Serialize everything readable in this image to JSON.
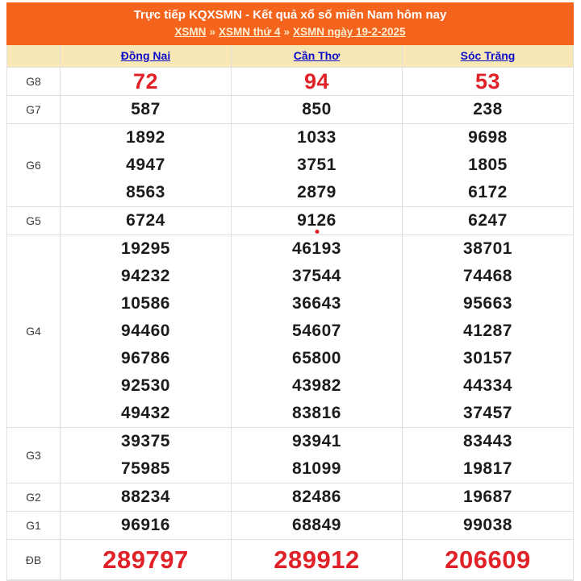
{
  "banner": {
    "title": "Trực tiếp KQXSMN - Kết quả xổ số miền Nam hôm nay",
    "breadcrumb": [
      {
        "label": "XSMN"
      },
      {
        "label": "XSMN thứ 4"
      },
      {
        "label": "XSMN ngày 19-2-2025"
      }
    ],
    "separator": "»"
  },
  "table": {
    "columns": [
      "Đồng Nai",
      "Cần Thơ",
      "Sóc Trăng"
    ],
    "rows": [
      {
        "label": "G8",
        "style": "red-large",
        "values": [
          [
            "72"
          ],
          [
            "94"
          ],
          [
            "53"
          ]
        ]
      },
      {
        "label": "G7",
        "style": "normal",
        "values": [
          [
            "587"
          ],
          [
            "850"
          ],
          [
            "238"
          ]
        ]
      },
      {
        "label": "G6",
        "style": "normal",
        "values": [
          [
            "1892",
            "4947",
            "8563"
          ],
          [
            "1033",
            "3751",
            "2879"
          ],
          [
            "9698",
            "1805",
            "6172"
          ]
        ]
      },
      {
        "label": "G5",
        "style": "normal",
        "live_dot_col": 1,
        "values": [
          [
            "6724"
          ],
          [
            "9126"
          ],
          [
            "6247"
          ]
        ]
      },
      {
        "label": "G4",
        "style": "normal",
        "values": [
          [
            "19295",
            "94232",
            "10586",
            "94460",
            "96786",
            "92530",
            "49432"
          ],
          [
            "46193",
            "37544",
            "36643",
            "54607",
            "65800",
            "43982",
            "83816"
          ],
          [
            "38701",
            "74468",
            "95663",
            "41287",
            "30157",
            "44334",
            "37457"
          ]
        ]
      },
      {
        "label": "G3",
        "style": "normal",
        "values": [
          [
            "39375",
            "75985"
          ],
          [
            "93941",
            "81099"
          ],
          [
            "83443",
            "19817"
          ]
        ]
      },
      {
        "label": "G2",
        "style": "normal",
        "values": [
          [
            "88234"
          ],
          [
            "82486"
          ],
          [
            "19687"
          ]
        ]
      },
      {
        "label": "G1",
        "style": "normal",
        "values": [
          [
            "96916"
          ],
          [
            "68849"
          ],
          [
            "99038"
          ]
        ]
      },
      {
        "label": "ĐB",
        "style": "red-xlarge",
        "values": [
          [
            "289797"
          ],
          [
            "289912"
          ],
          [
            "206609"
          ]
        ]
      }
    ]
  },
  "colors": {
    "banner_orange": "#F4641D",
    "header_cream": "#F7E8B6",
    "link_blue": "#0B0BCB",
    "prize_red": "#E02128",
    "value_black": "#1c1c1c",
    "border_gray": "#E0E0E0",
    "breadcrumb_link": "#FFEFD2"
  }
}
